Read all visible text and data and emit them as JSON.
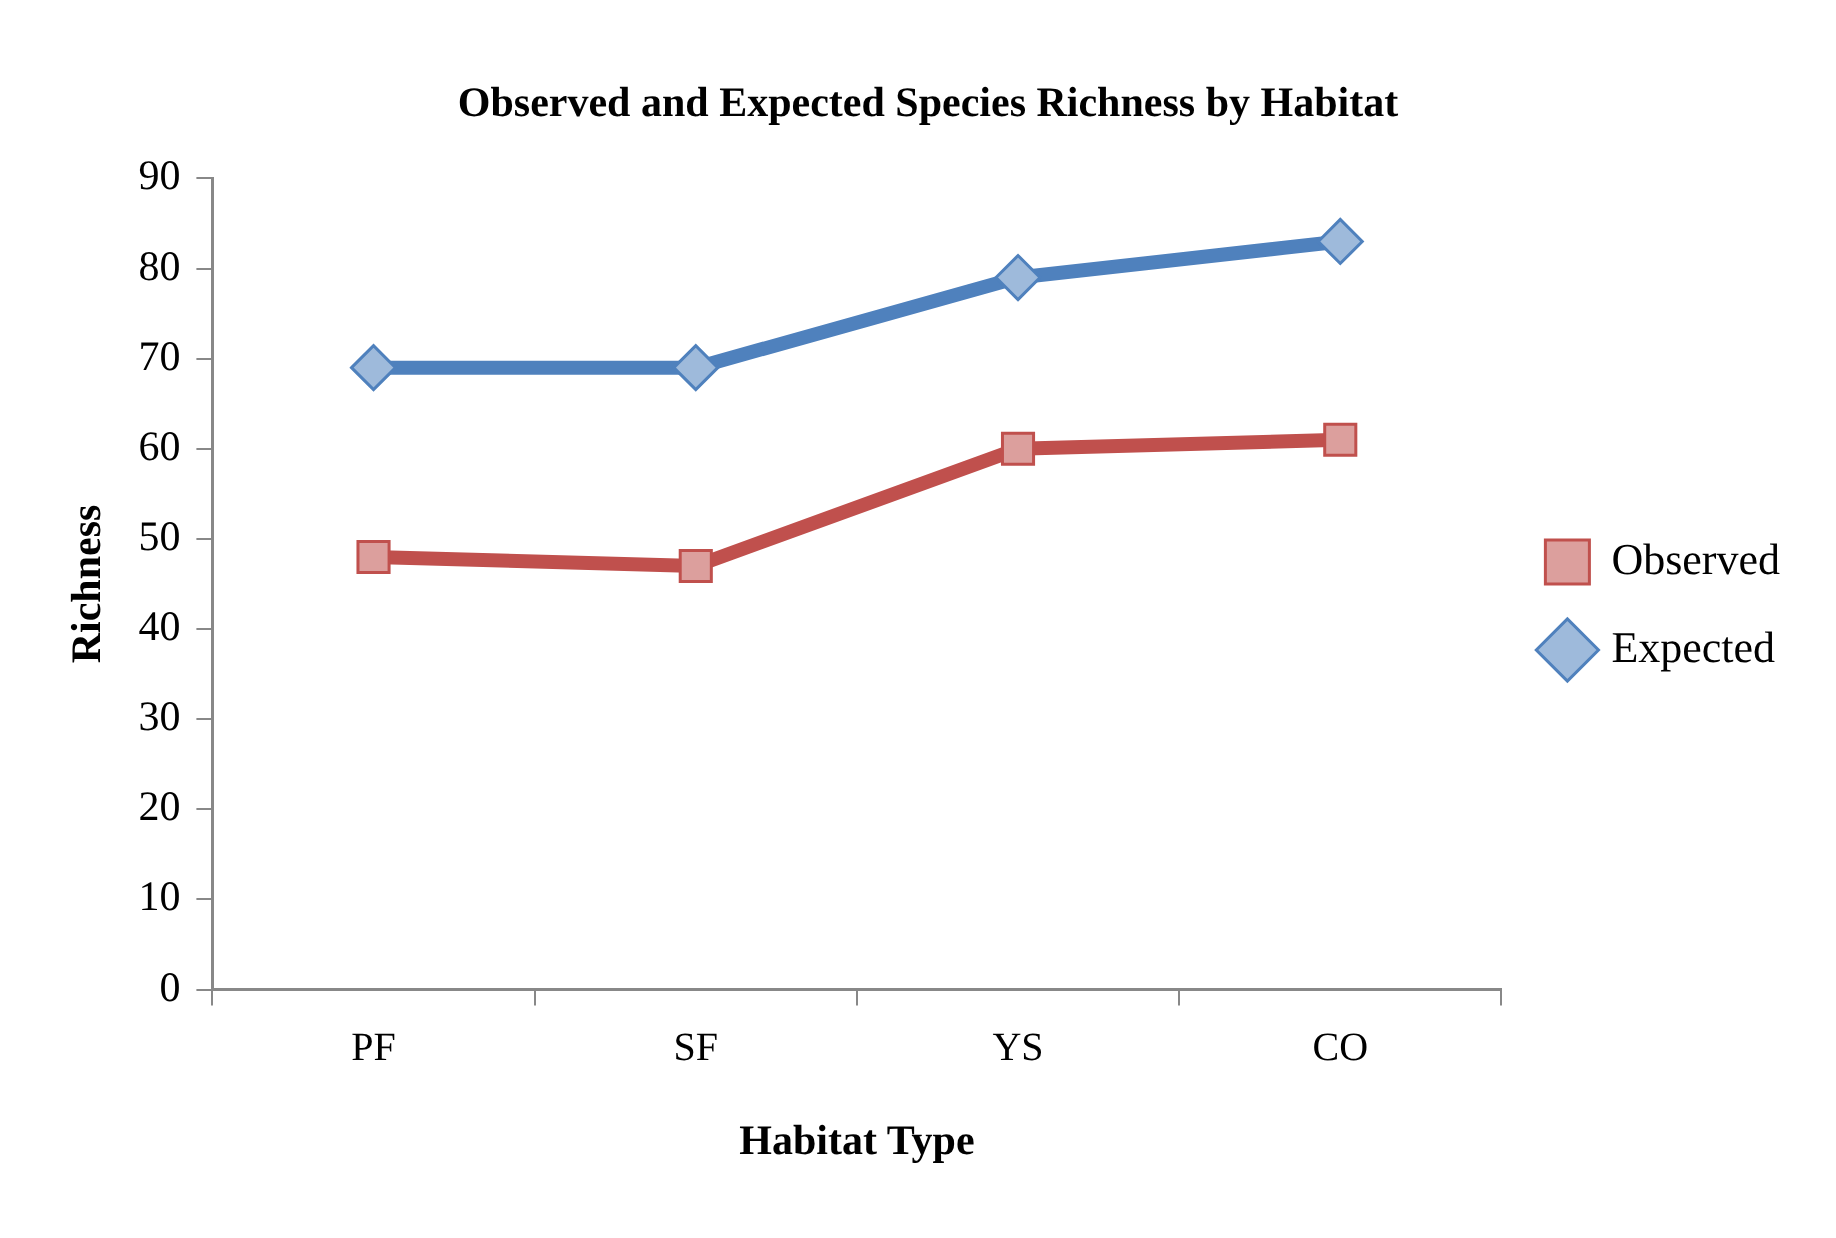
{
  "chart_data": {
    "type": "line",
    "title": "Observed and Expected Species Richness by Habitat",
    "xlabel": "Habitat Type",
    "ylabel": "Richness",
    "categories": [
      "PF",
      "SF",
      "YS",
      "CO"
    ],
    "series": [
      {
        "name": "Observed",
        "color": "#c0504d",
        "marker": "square",
        "values": [
          48,
          47,
          60,
          61
        ]
      },
      {
        "name": "Expected",
        "color": "#4f81bd",
        "marker": "diamond",
        "values": [
          69,
          69,
          79,
          83
        ]
      }
    ],
    "ylim": [
      0,
      90
    ],
    "yticks": [
      0,
      10,
      20,
      30,
      40,
      50,
      60,
      70,
      80,
      90
    ],
    "grid": false,
    "legend": "right"
  }
}
